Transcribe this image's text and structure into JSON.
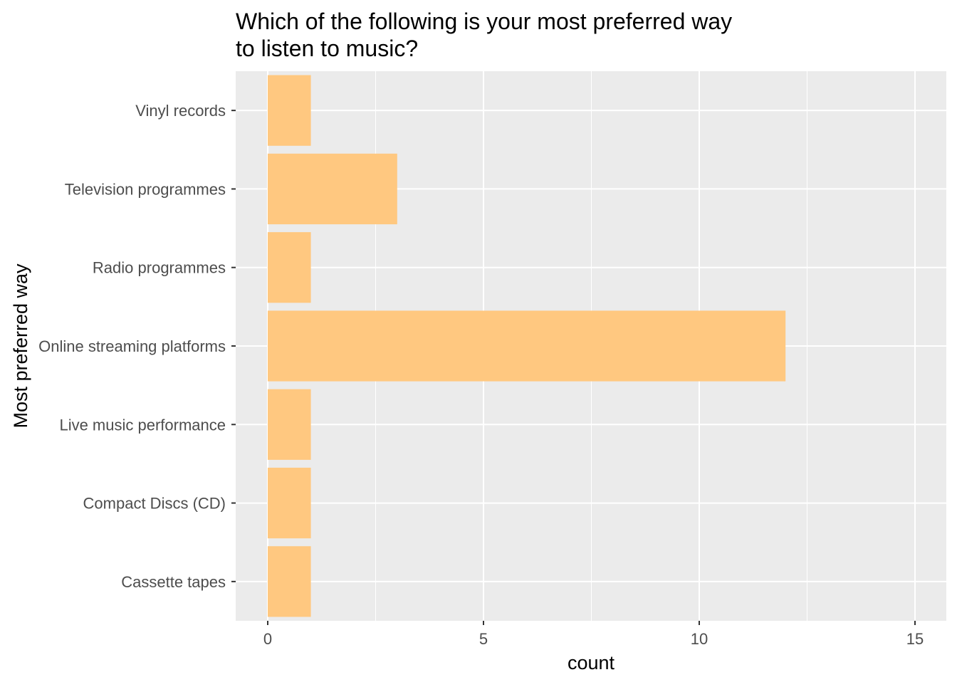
{
  "chart_data": {
    "type": "bar",
    "orientation": "horizontal",
    "title": [
      "Which of the following is your most preferred way",
      "to listen to music?"
    ],
    "xlabel": "count",
    "ylabel": "Most preferred way",
    "categories": [
      "Vinyl records",
      "Television programmes",
      "Radio programmes",
      "Online streaming platforms",
      "Live music performance",
      "Compact Discs (CD)",
      "Cassette tapes"
    ],
    "values": [
      1,
      3,
      1,
      12,
      1,
      1,
      1
    ],
    "xlim": [
      0,
      15
    ],
    "x_ticks": [
      0,
      5,
      10,
      15
    ],
    "grid": true,
    "legend": "none",
    "colors": {
      "bar": "#FFC880",
      "panel": "#EBEBEB",
      "grid": "#FFFFFF",
      "tick": "#333333"
    }
  }
}
